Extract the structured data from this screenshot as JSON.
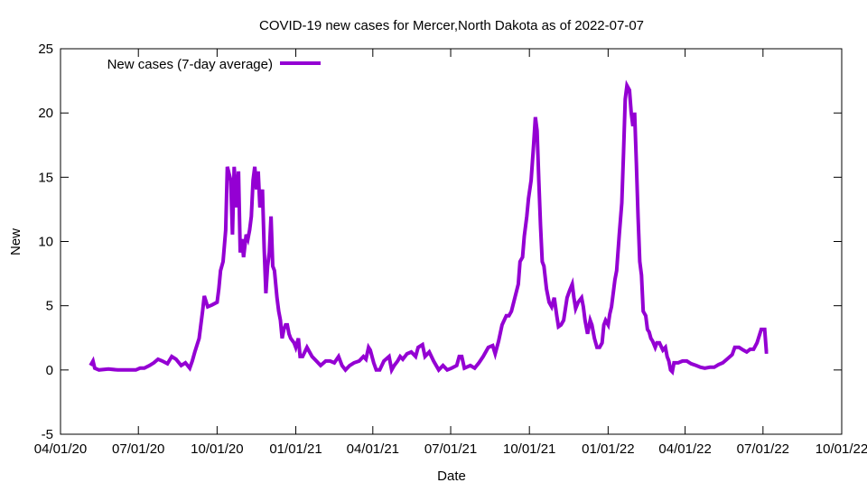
{
  "chart_data": {
    "type": "line",
    "title": "COVID-19 new cases for Mercer,North Dakota as of 2022-07-07",
    "xlabel": "Date",
    "ylabel": "New",
    "ylim": [
      -5,
      25
    ],
    "yticks": [
      -5,
      0,
      5,
      10,
      15,
      20,
      25
    ],
    "x_origin": "2020-04-01",
    "x_units": "days since x_origin",
    "xlim": [
      0,
      913
    ],
    "xticks": [
      {
        "day": 0,
        "label": "04/01/20"
      },
      {
        "day": 91,
        "label": "07/01/20"
      },
      {
        "day": 183,
        "label": "10/01/20"
      },
      {
        "day": 275,
        "label": "01/01/21"
      },
      {
        "day": 365,
        "label": "04/01/21"
      },
      {
        "day": 456,
        "label": "07/01/21"
      },
      {
        "day": 548,
        "label": "10/01/21"
      },
      {
        "day": 640,
        "label": "01/01/22"
      },
      {
        "day": 730,
        "label": "04/01/22"
      },
      {
        "day": 821,
        "label": "07/01/22"
      },
      {
        "day": 913,
        "label": "10/01/22"
      }
    ],
    "grid": false,
    "legend_position": "top-left",
    "series": [
      {
        "name": "New cases (7-day average)",
        "color": "#9400d3",
        "points": [
          [
            35,
            0.35
          ],
          [
            38,
            0.7
          ],
          [
            40,
            0.14
          ],
          [
            45,
            0
          ],
          [
            56,
            0.07
          ],
          [
            67,
            0
          ],
          [
            77,
            0
          ],
          [
            88,
            0
          ],
          [
            93,
            0.14
          ],
          [
            98,
            0.14
          ],
          [
            104,
            0.35
          ],
          [
            109,
            0.56
          ],
          [
            114,
            0.84
          ],
          [
            119,
            0.7
          ],
          [
            125,
            0.49
          ],
          [
            130,
            1.05
          ],
          [
            135,
            0.84
          ],
          [
            141,
            0.35
          ],
          [
            146,
            0.56
          ],
          [
            151,
            0.14
          ],
          [
            154,
            0.7
          ],
          [
            157,
            1.4
          ],
          [
            162,
            2.46
          ],
          [
            166,
            4.57
          ],
          [
            168,
            5.76
          ],
          [
            172,
            4.92
          ],
          [
            177,
            5.06
          ],
          [
            183,
            5.27
          ],
          [
            185,
            6.32
          ],
          [
            187,
            7.73
          ],
          [
            190,
            8.43
          ],
          [
            193,
            10.89
          ],
          [
            195,
            15.81
          ],
          [
            199,
            14.76
          ],
          [
            201,
            10.54
          ],
          [
            203,
            15.81
          ],
          [
            206,
            12.65
          ],
          [
            208,
            15.46
          ],
          [
            210,
            9.14
          ],
          [
            212,
            10.19
          ],
          [
            214,
            8.78
          ],
          [
            217,
            10.54
          ],
          [
            219,
            10.19
          ],
          [
            221,
            10.89
          ],
          [
            223,
            11.95
          ],
          [
            225,
            14.76
          ],
          [
            227,
            15.81
          ],
          [
            229,
            14.05
          ],
          [
            231,
            15.46
          ],
          [
            233,
            12.65
          ],
          [
            236,
            14.05
          ],
          [
            238,
            9.49
          ],
          [
            240,
            5.97
          ],
          [
            242,
            8.08
          ],
          [
            244,
            9.14
          ],
          [
            246,
            11.95
          ],
          [
            248,
            8.08
          ],
          [
            250,
            7.73
          ],
          [
            253,
            5.62
          ],
          [
            255,
            4.57
          ],
          [
            257,
            3.87
          ],
          [
            259,
            2.46
          ],
          [
            261,
            3.16
          ],
          [
            263,
            3.51
          ],
          [
            265,
            3.51
          ],
          [
            267,
            2.81
          ],
          [
            269,
            2.46
          ],
          [
            273,
            2.11
          ],
          [
            275,
            1.76
          ],
          [
            278,
            2.46
          ],
          [
            280,
            1.05
          ],
          [
            283,
            1.05
          ],
          [
            288,
            1.76
          ],
          [
            294,
            1.05
          ],
          [
            299,
            0.7
          ],
          [
            304,
            0.35
          ],
          [
            310,
            0.7
          ],
          [
            315,
            0.7
          ],
          [
            320,
            0.56
          ],
          [
            325,
            1.05
          ],
          [
            329,
            0.35
          ],
          [
            333,
            0
          ],
          [
            338,
            0.35
          ],
          [
            343,
            0.56
          ],
          [
            349,
            0.7
          ],
          [
            354,
            1.05
          ],
          [
            357,
            0.84
          ],
          [
            360,
            1.76
          ],
          [
            362,
            1.55
          ],
          [
            366,
            0.56
          ],
          [
            369,
            0
          ],
          [
            373,
            0
          ],
          [
            378,
            0.7
          ],
          [
            384,
            1.05
          ],
          [
            387,
            0
          ],
          [
            390,
            0.35
          ],
          [
            394,
            0.7
          ],
          [
            397,
            1.05
          ],
          [
            400,
            0.84
          ],
          [
            405,
            1.26
          ],
          [
            410,
            1.4
          ],
          [
            415,
            1.05
          ],
          [
            418,
            1.76
          ],
          [
            423,
            1.97
          ],
          [
            426,
            1.05
          ],
          [
            431,
            1.4
          ],
          [
            436,
            0.7
          ],
          [
            442,
            0
          ],
          [
            447,
            0.35
          ],
          [
            452,
            0
          ],
          [
            457,
            0.14
          ],
          [
            463,
            0.35
          ],
          [
            466,
            1.05
          ],
          [
            469,
            1.05
          ],
          [
            472,
            0.14
          ],
          [
            479,
            0.35
          ],
          [
            484,
            0.14
          ],
          [
            489,
            0.56
          ],
          [
            494,
            1.05
          ],
          [
            500,
            1.76
          ],
          [
            505,
            1.9
          ],
          [
            508,
            1.26
          ],
          [
            512,
            2.25
          ],
          [
            516,
            3.51
          ],
          [
            521,
            4.22
          ],
          [
            524,
            4.22
          ],
          [
            527,
            4.57
          ],
          [
            531,
            5.62
          ],
          [
            535,
            6.68
          ],
          [
            537,
            8.43
          ],
          [
            540,
            8.78
          ],
          [
            542,
            10.4
          ],
          [
            545,
            11.95
          ],
          [
            547,
            13.35
          ],
          [
            550,
            14.76
          ],
          [
            553,
            17.57
          ],
          [
            555,
            19.68
          ],
          [
            557,
            18.62
          ],
          [
            559,
            14.76
          ],
          [
            561,
            11.24
          ],
          [
            563,
            8.43
          ],
          [
            565,
            8.08
          ],
          [
            568,
            6.32
          ],
          [
            571,
            5.27
          ],
          [
            574,
            4.92
          ],
          [
            577,
            5.62
          ],
          [
            580,
            4.22
          ],
          [
            582,
            3.37
          ],
          [
            585,
            3.51
          ],
          [
            588,
            3.87
          ],
          [
            592,
            5.62
          ],
          [
            595,
            6.18
          ],
          [
            598,
            6.68
          ],
          [
            600,
            5.62
          ],
          [
            602,
            4.78
          ],
          [
            605,
            5.27
          ],
          [
            609,
            5.62
          ],
          [
            611,
            4.92
          ],
          [
            613,
            3.87
          ],
          [
            616,
            2.81
          ],
          [
            619,
            3.87
          ],
          [
            621,
            3.51
          ],
          [
            624,
            2.46
          ],
          [
            627,
            1.76
          ],
          [
            630,
            1.76
          ],
          [
            633,
            2.11
          ],
          [
            635,
            3.51
          ],
          [
            637,
            3.87
          ],
          [
            640,
            3.51
          ],
          [
            642,
            4.36
          ],
          [
            644,
            4.92
          ],
          [
            648,
            7.03
          ],
          [
            650,
            7.73
          ],
          [
            653,
            10.54
          ],
          [
            656,
            13.0
          ],
          [
            658,
            16.87
          ],
          [
            660,
            21.08
          ],
          [
            662,
            22.14
          ],
          [
            665,
            21.78
          ],
          [
            667,
            20.03
          ],
          [
            669,
            18.97
          ],
          [
            671,
            20.03
          ],
          [
            673,
            16.16
          ],
          [
            675,
            11.95
          ],
          [
            677,
            8.43
          ],
          [
            679,
            7.38
          ],
          [
            681,
            4.57
          ],
          [
            684,
            4.22
          ],
          [
            686,
            3.16
          ],
          [
            688,
            2.95
          ],
          [
            690,
            2.46
          ],
          [
            692,
            2.25
          ],
          [
            695,
            1.76
          ],
          [
            697,
            2.11
          ],
          [
            700,
            2.11
          ],
          [
            704,
            1.55
          ],
          [
            707,
            1.76
          ],
          [
            709,
            1.05
          ],
          [
            711,
            0.7
          ],
          [
            713,
            0
          ],
          [
            715,
            -0.14
          ],
          [
            717,
            0.56
          ],
          [
            722,
            0.56
          ],
          [
            727,
            0.7
          ],
          [
            732,
            0.7
          ],
          [
            737,
            0.49
          ],
          [
            743,
            0.35
          ],
          [
            748,
            0.21
          ],
          [
            753,
            0.14
          ],
          [
            759,
            0.21
          ],
          [
            764,
            0.21
          ],
          [
            769,
            0.42
          ],
          [
            774,
            0.56
          ],
          [
            779,
            0.84
          ],
          [
            785,
            1.19
          ],
          [
            788,
            1.76
          ],
          [
            793,
            1.76
          ],
          [
            798,
            1.55
          ],
          [
            802,
            1.4
          ],
          [
            806,
            1.61
          ],
          [
            810,
            1.61
          ],
          [
            814,
            2.11
          ],
          [
            819,
            3.16
          ],
          [
            823,
            3.16
          ],
          [
            825,
            1.4
          ],
          [
            827,
            1.4
          ]
        ]
      }
    ]
  }
}
